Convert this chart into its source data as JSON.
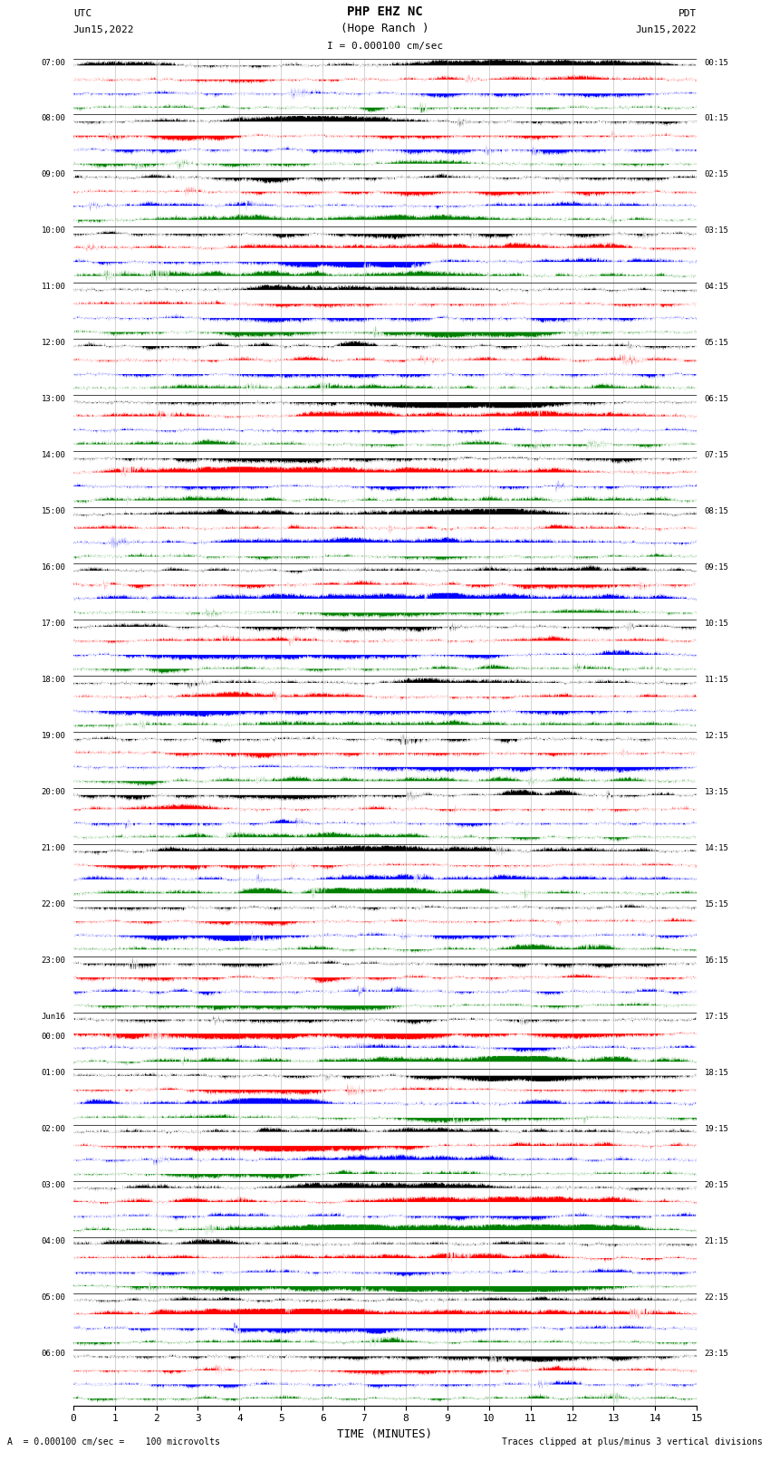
{
  "title_line1": "PHP EHZ NC",
  "title_line2": "(Hope Ranch )",
  "scale_label": "I = 0.000100 cm/sec",
  "utc_label": "UTC",
  "utc_date": "Jun15,2022",
  "pdt_label": "PDT",
  "pdt_date": "Jun15,2022",
  "left_times_utc": [
    "07:00",
    "08:00",
    "09:00",
    "10:00",
    "11:00",
    "12:00",
    "13:00",
    "14:00",
    "15:00",
    "16:00",
    "17:00",
    "18:00",
    "19:00",
    "20:00",
    "21:00",
    "22:00",
    "23:00",
    "Jun16\n00:00",
    "01:00",
    "02:00",
    "03:00",
    "04:00",
    "05:00",
    "06:00"
  ],
  "right_times_pdt": [
    "00:15",
    "01:15",
    "02:15",
    "03:15",
    "04:15",
    "05:15",
    "06:15",
    "07:15",
    "08:15",
    "09:15",
    "10:15",
    "11:15",
    "12:15",
    "13:15",
    "14:15",
    "15:15",
    "16:15",
    "17:15",
    "18:15",
    "19:15",
    "20:15",
    "21:15",
    "22:15",
    "23:15"
  ],
  "num_rows": 24,
  "traces_per_row": 4,
  "colors": [
    "black",
    "red",
    "blue",
    "green"
  ],
  "xlabel": "TIME (MINUTES)",
  "xticks": [
    0,
    1,
    2,
    3,
    4,
    5,
    6,
    7,
    8,
    9,
    10,
    11,
    12,
    13,
    14,
    15
  ],
  "footer_left": "A  = 0.000100 cm/sec =    100 microvolts",
  "footer_right": "Traces clipped at plus/minus 3 vertical divisions",
  "background_color": "white",
  "fig_width": 8.5,
  "fig_height": 16.13
}
